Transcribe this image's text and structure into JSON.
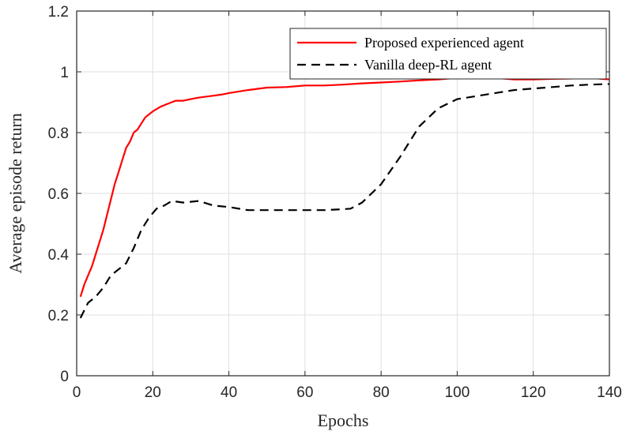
{
  "chart_data": {
    "type": "line",
    "title": "",
    "xlabel": "Epochs",
    "ylabel": "Average episode return",
    "xlim": [
      0,
      140
    ],
    "ylim": [
      0,
      1.2
    ],
    "xticks": [
      0,
      20,
      40,
      60,
      80,
      100,
      120,
      140
    ],
    "xtick_labels": [
      "0",
      "20",
      "40",
      "60",
      "80",
      "100",
      "120",
      "140"
    ],
    "yticks": [
      0,
      0.2,
      0.4,
      0.6,
      0.8,
      1.0,
      1.2
    ],
    "ytick_labels": [
      "0",
      "0.2",
      "0.4",
      "0.6",
      "0.8",
      "1",
      "1.2"
    ],
    "grid": true,
    "legend_position": "top-right",
    "series": [
      {
        "name": "Proposed experienced agent",
        "color": "#ff0000",
        "style": "solid",
        "x": [
          1,
          2,
          3,
          4,
          5,
          6,
          7,
          8,
          9,
          10,
          11,
          12,
          13,
          14,
          15,
          16,
          17,
          18,
          19,
          20,
          22,
          24,
          26,
          28,
          30,
          32,
          35,
          38,
          40,
          45,
          50,
          55,
          60,
          65,
          70,
          75,
          80,
          85,
          90,
          95,
          100,
          105,
          110,
          115,
          120,
          125,
          130,
          135,
          140
        ],
        "y": [
          0.26,
          0.3,
          0.33,
          0.36,
          0.4,
          0.44,
          0.48,
          0.53,
          0.58,
          0.63,
          0.67,
          0.71,
          0.75,
          0.77,
          0.8,
          0.81,
          0.83,
          0.85,
          0.86,
          0.87,
          0.885,
          0.895,
          0.905,
          0.905,
          0.91,
          0.915,
          0.92,
          0.925,
          0.93,
          0.94,
          0.948,
          0.95,
          0.955,
          0.955,
          0.958,
          0.962,
          0.965,
          0.968,
          0.972,
          0.975,
          0.98,
          0.985,
          0.98,
          0.975,
          0.975,
          0.977,
          0.978,
          0.98,
          0.975
        ]
      },
      {
        "name": "Vanilla deep-RL agent",
        "color": "#000000",
        "style": "dashed",
        "x": [
          1,
          3,
          5,
          7,
          9,
          11,
          13,
          15,
          17,
          19,
          21,
          23,
          25,
          28,
          32,
          36,
          40,
          45,
          50,
          55,
          60,
          65,
          70,
          72,
          75,
          80,
          85,
          90,
          95,
          100,
          105,
          110,
          115,
          120,
          125,
          130,
          135,
          140
        ],
        "y": [
          0.19,
          0.24,
          0.26,
          0.29,
          0.33,
          0.35,
          0.37,
          0.42,
          0.48,
          0.52,
          0.55,
          0.56,
          0.575,
          0.57,
          0.575,
          0.56,
          0.555,
          0.545,
          0.545,
          0.545,
          0.545,
          0.545,
          0.548,
          0.55,
          0.57,
          0.63,
          0.72,
          0.82,
          0.88,
          0.91,
          0.92,
          0.93,
          0.94,
          0.945,
          0.95,
          0.955,
          0.958,
          0.96
        ]
      }
    ]
  }
}
